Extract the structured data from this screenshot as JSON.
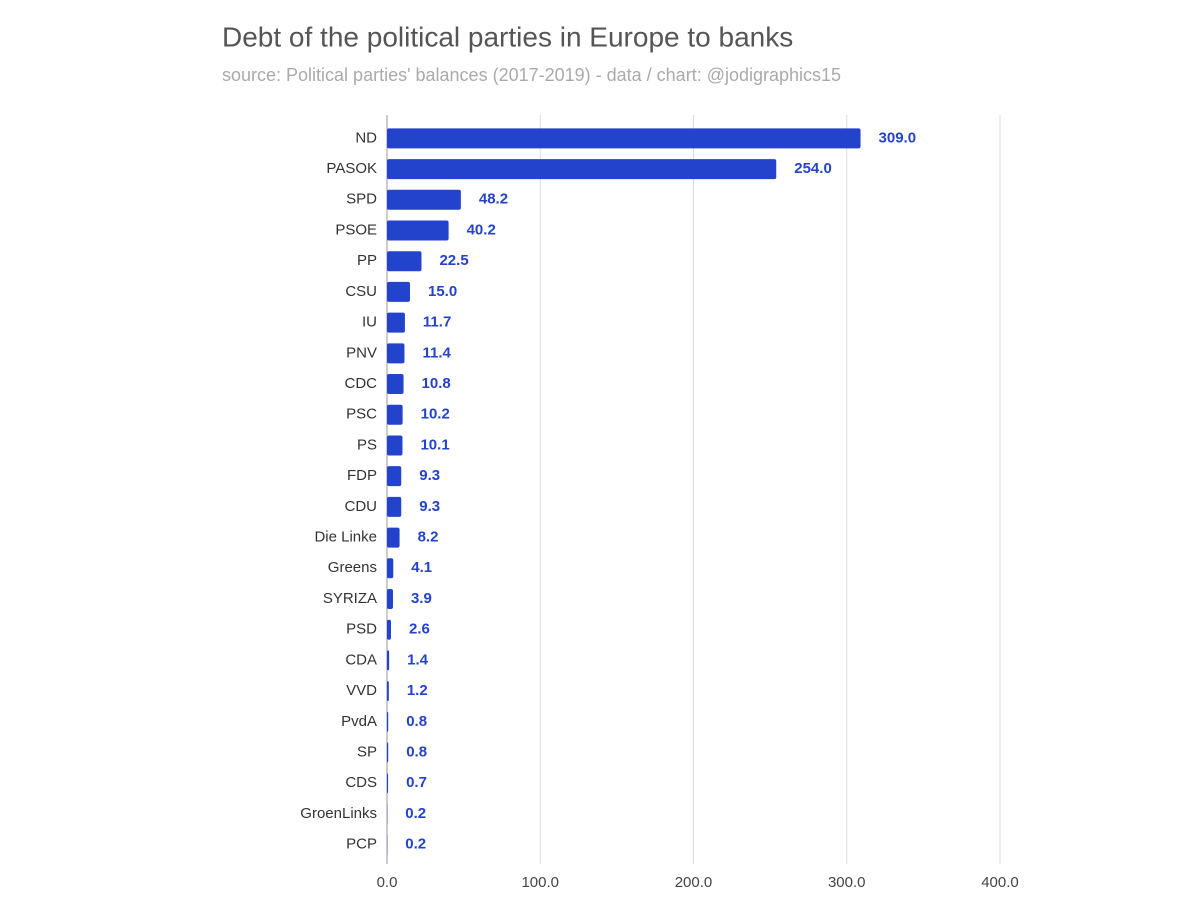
{
  "chart_data": {
    "type": "bar",
    "title": "Debt of the political parties in Europe to banks",
    "subtitle": "source: Political parties' balances (2017-2019) - data / chart: @jodigraphics15",
    "categories": [
      "ND",
      "PASOK",
      "SPD",
      "PSOE",
      "PP",
      "CSU",
      "IU",
      "PNV",
      "CDC",
      "PSC",
      "PS",
      "FDP",
      "CDU",
      "Die Linke",
      "Greens",
      "SYRIZA",
      "PSD",
      "CDA",
      "VVD",
      "PvdA",
      "SP",
      "CDS",
      "GroenLinks",
      "PCP"
    ],
    "values": [
      309,
      254,
      48.2,
      40.2,
      22.5,
      15,
      11.7,
      11.4,
      10.8,
      10.2,
      10.1,
      9.3,
      9.3,
      8.2,
      4.1,
      3.9,
      2.6,
      1.4,
      1.2,
      0.8,
      0.8,
      0.7,
      0.2,
      0.2
    ],
    "value_labels": [
      "309.0",
      "254.0",
      "48.2",
      "40.2",
      "22.5",
      "15.0",
      "11.7",
      "11.4",
      "10.8",
      "10.2",
      "10.1",
      "9.3",
      "9.3",
      "8.2",
      "4.1",
      "3.9",
      "2.6",
      "1.4",
      "1.2",
      "0.8",
      "0.8",
      "0.7",
      "0.2",
      "0.2"
    ],
    "color": "#2443cc",
    "xlim": [
      0,
      400
    ],
    "xticks": [
      {
        "value": 0,
        "label": "0.0"
      },
      {
        "value": 100,
        "label": "100.0"
      },
      {
        "value": 200,
        "label": "200.0"
      },
      {
        "value": 300,
        "label": "300.0"
      },
      {
        "value": 400,
        "label": "400.0"
      }
    ],
    "grid": true
  }
}
